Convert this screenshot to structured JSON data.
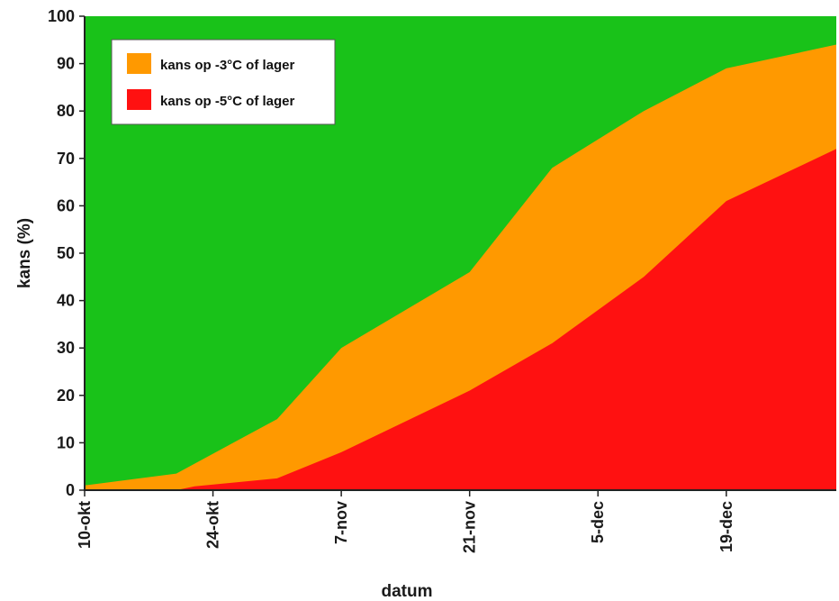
{
  "chart_data": {
    "type": "area",
    "title": "",
    "xlabel": "datum",
    "ylabel": "kans (%)",
    "ylim": [
      0,
      100
    ],
    "yticks": [
      0,
      10,
      20,
      30,
      40,
      50,
      60,
      70,
      80,
      90,
      100
    ],
    "x_tick_labels": [
      "10-okt",
      "24-okt",
      "7-nov",
      "21-nov",
      "5-dec",
      "19-dec"
    ],
    "x_tick_days": [
      0,
      14,
      28,
      42,
      56,
      70
    ],
    "xlim": [
      0,
      82
    ],
    "background_color": "#19c219",
    "legend_position": "top-left",
    "series": [
      {
        "name": "kans op -3°C of lager",
        "color": "#ff9900",
        "x": [
          0,
          10,
          21,
          28,
          42,
          51,
          56,
          61,
          70,
          82
        ],
        "y": [
          1,
          3.5,
          15,
          30,
          46,
          68,
          74,
          80,
          89,
          94
        ]
      },
      {
        "name": "kans op -5°C of lager",
        "color": "#ff1111",
        "x": [
          0,
          10,
          12,
          21,
          28,
          42,
          51,
          56,
          61,
          70,
          82
        ],
        "y": [
          0,
          0,
          0.8,
          2.5,
          8,
          21,
          31,
          38,
          45,
          61,
          72
        ]
      }
    ]
  }
}
